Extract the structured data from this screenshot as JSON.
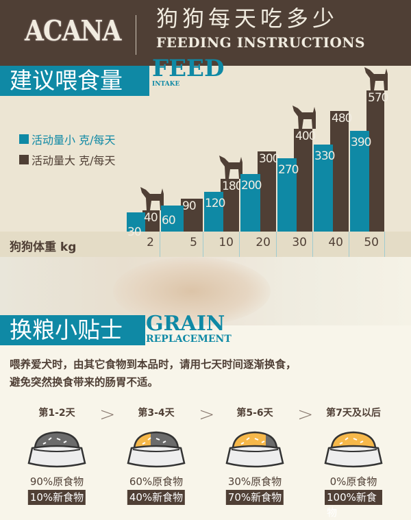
{
  "header": {
    "logo": "ACANA",
    "title_cn": "狗狗每天吃多少",
    "title_en": "FEEDING INSTRUCTIONS"
  },
  "feed_banner": {
    "cn": "建议喂食量",
    "en": "FEED",
    "en_sub": "INTAKE"
  },
  "colors": {
    "low_activity": "#0f89a5",
    "high_activity": "#4f3f35",
    "header": "#4f3f35",
    "new_food": "#f6b84a",
    "old_food": "#6b6b6b"
  },
  "chart_data": {
    "type": "bar",
    "xlabel": "狗狗体重  kg",
    "categories": [
      "2",
      "5",
      "10",
      "20",
      "30",
      "40",
      "50"
    ],
    "series": [
      {
        "name": "活动量小 克/每天",
        "values": [
          30,
          60,
          120,
          200,
          270,
          330,
          390
        ]
      },
      {
        "name": "活动量大 克/每天",
        "values": [
          40,
          90,
          180,
          300,
          400,
          480,
          570
        ]
      }
    ],
    "legend": "left",
    "grid": false,
    "decorations": [
      "dog-silhouette-2kg",
      "dog-silhouette-10kg",
      "dog-silhouette-30kg",
      "dog-silhouette-50kg"
    ]
  },
  "grain_banner": {
    "cn": "换粮小贴士",
    "en": "GRAIN",
    "en_sub": "REPLACEMENT"
  },
  "tips": [
    "喂养爱犬时，由其它食物到本品时，请用七天时间逐渐换食，",
    "避免突然换食带来的肠胃不适。"
  ],
  "steps": [
    {
      "label": "第1-2天",
      "original": "90%原食物",
      "new": "10%新食物",
      "new_fraction": 0.1
    },
    {
      "label": "第3-4天",
      "original": "60%原食物",
      "new": "40%新食物",
      "new_fraction": 0.4
    },
    {
      "label": "第5-6天",
      "original": "30%原食物",
      "new": "70%新食物",
      "new_fraction": 0.7
    },
    {
      "label": "第7天及以后",
      "original": "0%原食物",
      "new": "100%新食物",
      "new_fraction": 1.0
    }
  ],
  "arrow_glyph": ">"
}
